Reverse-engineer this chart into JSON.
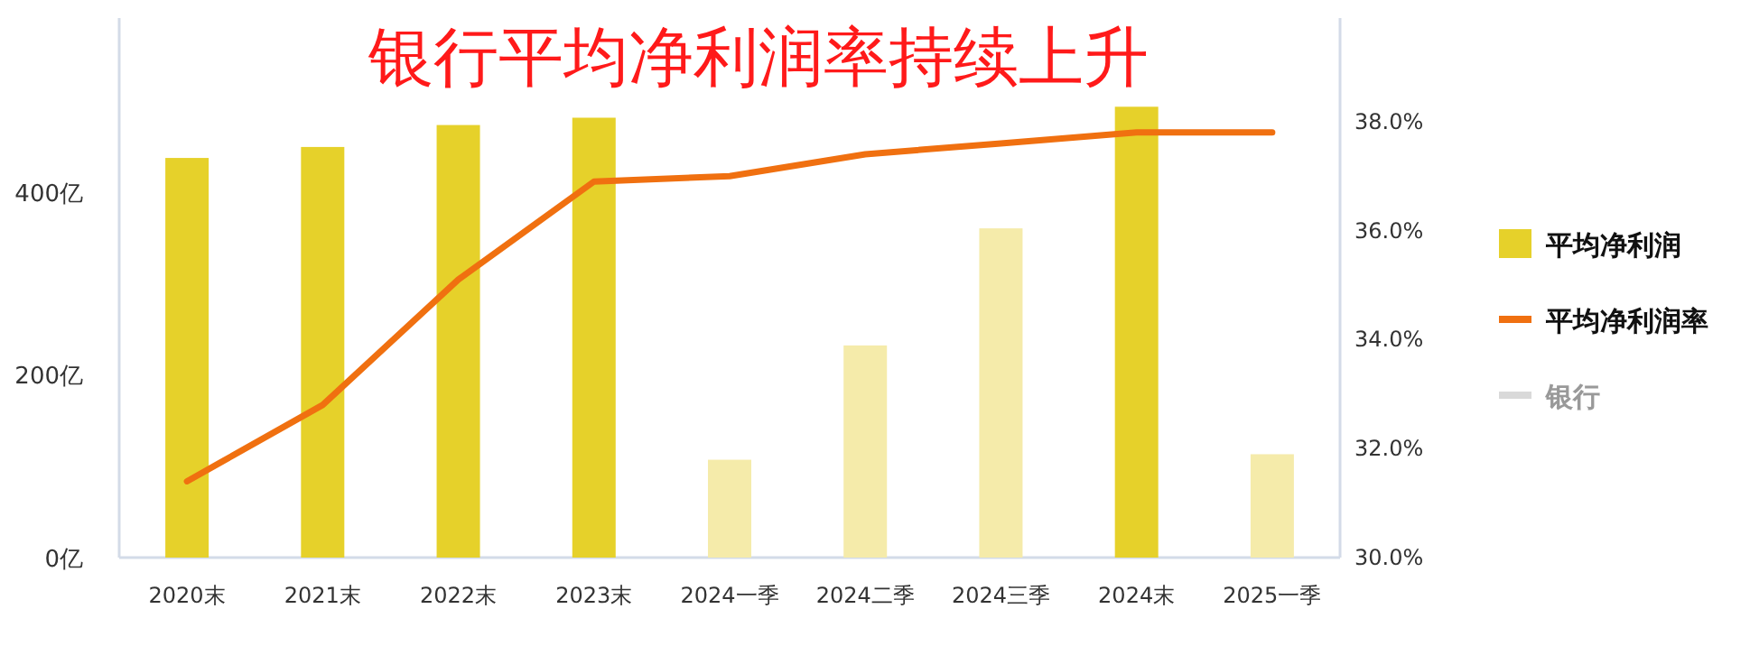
{
  "chart_data": {
    "type": "bar",
    "title": "银行平均净利润率持续上升",
    "categories": [
      "2020末",
      "2021末",
      "2022末",
      "2023末",
      "2024一季",
      "2024二季",
      "2024三季",
      "2024末",
      "2025一季"
    ],
    "series": [
      {
        "name": "平均净利润",
        "color": "#e6d12a",
        "colors": [
          "#e6d12a",
          "#e6d12a",
          "#e6d12a",
          "#e6d12a",
          "#f5ebaa",
          "#f5ebaa",
          "#f5ebaa",
          "#e6d12a",
          "#f5ebaa"
        ],
        "values": [
          437,
          449,
          473,
          481,
          107,
          232,
          360,
          493,
          113
        ]
      },
      {
        "name": "平均净利润率",
        "type": "line",
        "axis": "y2",
        "color": "#f07010",
        "values": [
          31.4,
          32.8,
          35.1,
          36.9,
          37.0,
          37.4,
          37.6,
          37.8,
          37.8
        ]
      },
      {
        "name": "银行",
        "type": "line",
        "color": "#d9d9d9",
        "values": [
          null,
          null,
          null,
          null,
          null,
          null,
          null,
          null,
          null
        ]
      }
    ],
    "ylim": [
      0,
      590
    ],
    "yticks": [
      {
        "value": 0,
        "label": "0亿"
      },
      {
        "value": 200,
        "label": "200亿"
      },
      {
        "value": 400,
        "label": "400亿"
      }
    ],
    "y2lim": [
      30,
      39.9
    ],
    "y2ticks": [
      {
        "value": 30,
        "label": "30.0%"
      },
      {
        "value": 32,
        "label": "32.0%"
      },
      {
        "value": 34,
        "label": "34.0%"
      },
      {
        "value": 36,
        "label": "36.0%"
      },
      {
        "value": 38,
        "label": "38.0%"
      }
    ],
    "legend": "right"
  }
}
